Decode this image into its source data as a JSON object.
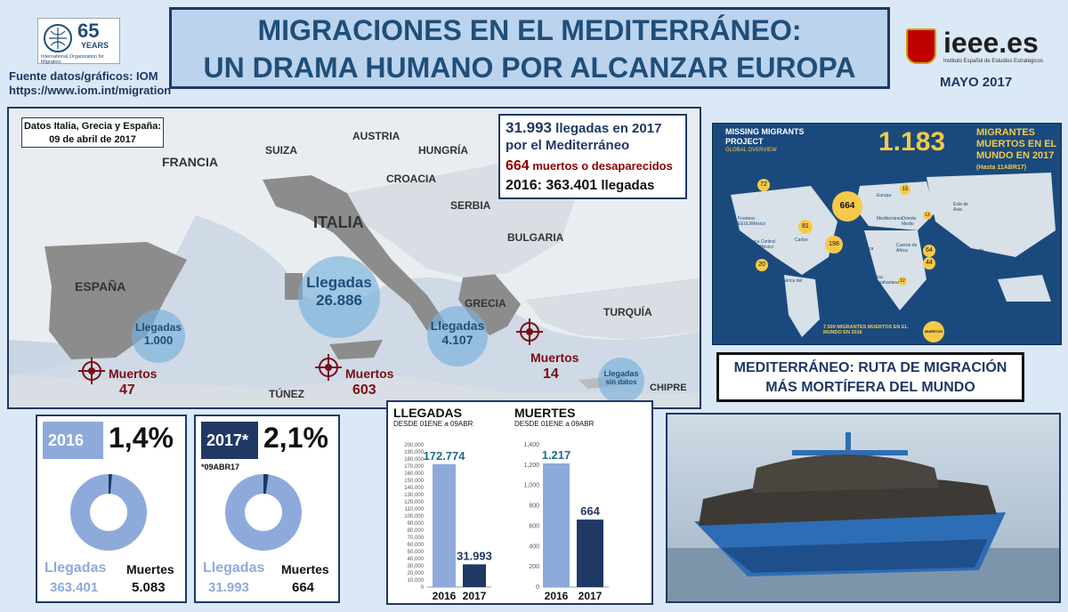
{
  "header": {
    "title_line1": "MIGRACIONES EN EL MEDITERRÁNEO:",
    "title_line2": "UN DRAMA HUMANO POR ALCANZAR EUROPA",
    "iom_logo_text": "65",
    "iom_logo_sub": "YEARS",
    "iom_logo_caption": "International Organization for Migration",
    "source_line1": "Fuente datos/gráficos: IOM",
    "source_line2": "https://www.iom.int/migration",
    "ieee_logo": "ieee.es",
    "ieee_sub": "Instituto Español de Estudios Estratégicos",
    "date": "MAYO 2017"
  },
  "map": {
    "date_label_1": "Datos Italia, Grecia y España:",
    "date_label_2": "09 de abril de 2017",
    "countries": [
      "FRANCIA",
      "SUIZA",
      "AUSTRIA",
      "HUNGRÍA",
      "CROACIA",
      "SERBIA",
      "BULGARIA",
      "ITALIA",
      "ESPAÑA",
      "GRECIA",
      "TURQUÍA",
      "TÚNEZ",
      "CHIPRE"
    ],
    "info_arrivals_num": "31.993",
    "info_arrivals_text": "llegadas en 2017",
    "info_arrivals_text2": "por el Mediterráneo",
    "info_dead_num": "664",
    "info_dead_text": "muertos o desaparecidos",
    "info_2016": "2016: 363.401",
    "info_2016_text": "llegadas",
    "arrivals_label": "Llegadas",
    "arrivals_italy": "26.886",
    "arrivals_spain": "1.000",
    "arrivals_greece": "4.107",
    "arrivals_cyprus": "sin datos",
    "dead_label": "Muertos",
    "dead_spain": "47",
    "dead_italy": "603",
    "dead_greece": "14"
  },
  "missing_migrants": {
    "title1": "MISSING MIGRANTS",
    "title2": "PROJECT",
    "subtitle": "GLOBAL OVERVIEW",
    "big_num": "1.183",
    "big_text1": "MIGRANTES",
    "big_text2": "MUERTOS EN EL",
    "big_text3": "MUNDO EN 2017",
    "big_note": "(Hasta 11ABR17)",
    "regions": [
      {
        "label": "Frontera EEUU/México",
        "value": "72"
      },
      {
        "label": "Caribe",
        "value": "81"
      },
      {
        "label": "América Central incluido México",
        "value": "20"
      },
      {
        "label": "América del Sur",
        "value": ""
      },
      {
        "label": "Mediterráneo",
        "value": "664"
      },
      {
        "label": "Europa",
        "value": "15"
      },
      {
        "label": "Sáhara y Norte África",
        "value": "198"
      },
      {
        "label": "Oriente Medio",
        "value": "13"
      },
      {
        "label": "Cuerno de África",
        "value": "64"
      },
      {
        "label": "África Subsahariana",
        "value": "12"
      },
      {
        "label": "Este de Asia",
        "value": ""
      },
      {
        "label": "Sureste de Asia",
        "value": "44"
      }
    ],
    "footer": "7.509 MIGRANTES MUERTOS EN EL MUNDO EN 2016",
    "footer_badge": "MUERTOS"
  },
  "red_box": {
    "line1": "MEDITERRÁNEO: RUTA DE MIGRACIÓN",
    "line2": "MÁS MORTÍFERA DEL MUNDO"
  },
  "donut_2016": {
    "year": "2016",
    "pct": "1,4%",
    "label_arrivals": "Llegadas",
    "label_dead": "Muertes",
    "arrivals": "363.401",
    "dead": "5.083",
    "fraction": 0.014
  },
  "donut_2017": {
    "year": "2017*",
    "pct": "2,1%",
    "note": "*09ABR17",
    "label_arrivals": "Llegadas",
    "label_dead": "Muertes",
    "arrivals": "31.993",
    "dead": "664",
    "fraction": 0.021
  },
  "chart_data": [
    {
      "type": "bar",
      "title": "LLEGADAS",
      "subtitle": "DESDE 01ENE a 09ABR",
      "categories": [
        "2016",
        "2017"
      ],
      "values": [
        172774,
        31993
      ],
      "value_labels": [
        "172.774",
        "31.993"
      ],
      "ylim": [
        0,
        200000
      ],
      "yticks": [
        0,
        10000,
        20000,
        30000,
        40000,
        50000,
        60000,
        70000,
        80000,
        90000,
        100000,
        110000,
        120000,
        130000,
        140000,
        150000,
        160000,
        170000,
        180000,
        190000,
        200000
      ],
      "ytick_labels": [
        "0",
        "10,000",
        "20,000",
        "30,000",
        "40,000",
        "50,000",
        "60,000",
        "70,000",
        "80,000",
        "90,000",
        "100,000",
        "110,000",
        "120,000",
        "130,000",
        "140,000",
        "150,000",
        "160,000",
        "170,000",
        "180,000",
        "190,000",
        "200,000"
      ],
      "colors": [
        "#8eaadb",
        "#1f3864"
      ]
    },
    {
      "type": "bar",
      "title": "MUERTES",
      "subtitle": "DESDE 01ENE a 09ABR",
      "categories": [
        "2016",
        "2017"
      ],
      "values": [
        1217,
        664
      ],
      "value_labels": [
        "1.217",
        "664"
      ],
      "ylim": [
        0,
        1400
      ],
      "yticks": [
        0,
        200,
        400,
        600,
        800,
        1000,
        1200,
        1400
      ],
      "ytick_labels": [
        "0",
        "200",
        "400",
        "600",
        "800",
        "1,000",
        "1,200",
        "1,400"
      ],
      "colors": [
        "#8eaadb",
        "#1f3864"
      ]
    }
  ]
}
